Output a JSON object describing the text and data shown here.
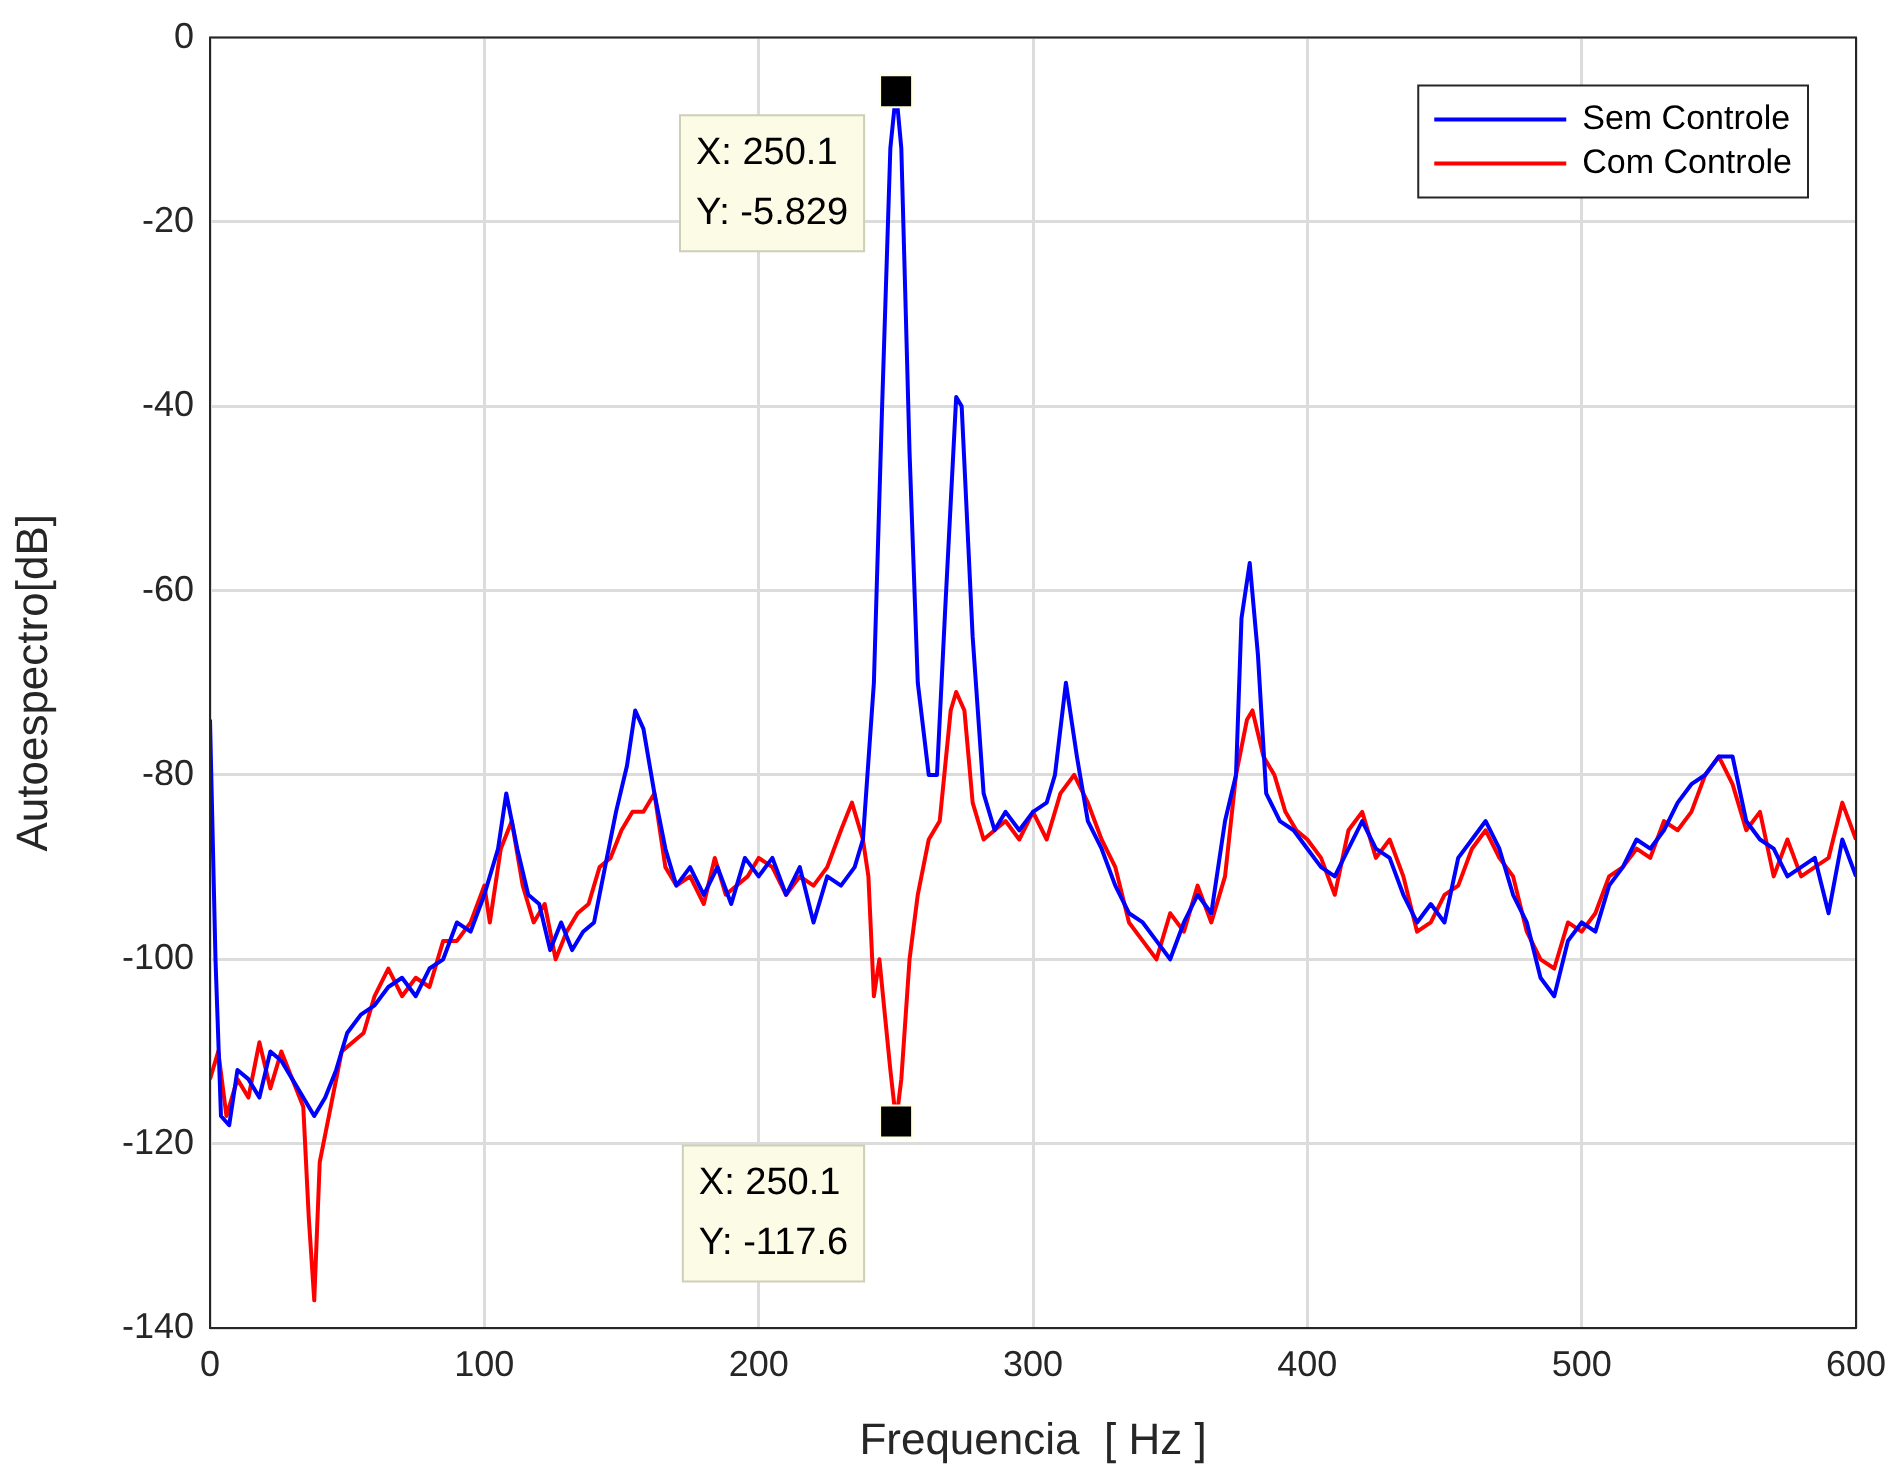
{
  "chart_data": {
    "type": "line",
    "xlabel": "Frequencia  [ Hz ]",
    "ylabel": "Autoespectro[dB]",
    "xlim": [
      0,
      600
    ],
    "xticks": [
      0,
      100,
      200,
      300,
      400,
      500,
      600
    ],
    "ylim": [
      -140,
      0
    ],
    "yticks": [
      -140,
      -120,
      -100,
      -80,
      -60,
      -40,
      -20,
      0
    ],
    "grid": true,
    "legend": "top right",
    "marker": "none",
    "line_style": "solid",
    "annotations": [
      {
        "text": "X: 250.1\nY: -5.829",
        "x": 250.1,
        "y": -5.829
      },
      {
        "text": "X: 250.1\nY: -117.6",
        "x": 250.1,
        "y": -117.6
      }
    ],
    "series": [
      {
        "name": "Sem Controle",
        "color": "#0000ff",
        "x": [
          0,
          2,
          4,
          7,
          10,
          14,
          18,
          22,
          26,
          30,
          34,
          38,
          42,
          46,
          50,
          55,
          60,
          65,
          70,
          75,
          80,
          85,
          90,
          95,
          100,
          105,
          108,
          112,
          116,
          120,
          124,
          128,
          132,
          136,
          140,
          144,
          148,
          152,
          155,
          158,
          162,
          166,
          170,
          175,
          180,
          185,
          190,
          195,
          200,
          205,
          210,
          215,
          220,
          225,
          230,
          235,
          238,
          242,
          245,
          248,
          250.1,
          252,
          255,
          258,
          262,
          265,
          268,
          272,
          274,
          278,
          282,
          286,
          290,
          295,
          300,
          305,
          308,
          312,
          316,
          320,
          325,
          330,
          335,
          340,
          345,
          350,
          355,
          360,
          365,
          370,
          374,
          376,
          379,
          382,
          385,
          390,
          395,
          400,
          405,
          410,
          415,
          420,
          425,
          430,
          435,
          440,
          445,
          450,
          455,
          460,
          465,
          470,
          475,
          480,
          485,
          490,
          495,
          500,
          505,
          510,
          515,
          520,
          525,
          530,
          535,
          540,
          545,
          550,
          555,
          560,
          565,
          570,
          575,
          580,
          585,
          590,
          595,
          600
        ],
        "values": [
          -74,
          -100,
          -117,
          -118,
          -112,
          -113,
          -115,
          -110,
          -111,
          -113,
          -115,
          -117,
          -115,
          -112,
          -108,
          -106,
          -105,
          -103,
          -102,
          -104,
          -101,
          -100,
          -96,
          -97,
          -93,
          -88,
          -82,
          -88,
          -93,
          -94,
          -99,
          -96,
          -99,
          -97,
          -96,
          -90,
          -84,
          -79,
          -73,
          -75,
          -82,
          -88,
          -92,
          -90,
          -93,
          -90,
          -94,
          -89,
          -91,
          -89,
          -93,
          -90,
          -96,
          -91,
          -92,
          -90,
          -87,
          -70,
          -40,
          -12,
          -5.829,
          -12,
          -45,
          -70,
          -80,
          -80,
          -62,
          -39,
          -40,
          -65,
          -82,
          -86,
          -84,
          -86,
          -84,
          -83,
          -80,
          -70,
          -78,
          -85,
          -88,
          -92,
          -95,
          -96,
          -98,
          -100,
          -96,
          -93,
          -95,
          -85,
          -80,
          -63,
          -57,
          -67,
          -82,
          -85,
          -86,
          -88,
          -90,
          -91,
          -88,
          -85,
          -88,
          -89,
          -93,
          -96,
          -94,
          -96,
          -89,
          -87,
          -85,
          -88,
          -93,
          -96,
          -102,
          -104,
          -98,
          -96,
          -97,
          -92,
          -90,
          -87,
          -88,
          -86,
          -83,
          -81,
          -80,
          -78,
          -78,
          -85,
          -87,
          -88,
          -91,
          -90,
          -89,
          -95,
          -87,
          -91
        ]
      },
      {
        "name": "Com Controle",
        "color": "#ff0000",
        "x": [
          0,
          3,
          6,
          10,
          14,
          18,
          22,
          26,
          30,
          34,
          36,
          38,
          40,
          44,
          48,
          52,
          56,
          60,
          65,
          70,
          75,
          80,
          85,
          90,
          95,
          100,
          102,
          106,
          110,
          114,
          118,
          122,
          126,
          130,
          134,
          138,
          142,
          146,
          150,
          154,
          158,
          162,
          166,
          170,
          175,
          180,
          184,
          188,
          192,
          196,
          200,
          205,
          210,
          215,
          220,
          225,
          230,
          234,
          238,
          240,
          242,
          244,
          246,
          248,
          250.1,
          252,
          255,
          258,
          262,
          266,
          270,
          272,
          275,
          278,
          282,
          286,
          290,
          295,
          300,
          305,
          310,
          315,
          320,
          325,
          330,
          335,
          340,
          345,
          350,
          355,
          360,
          365,
          370,
          374,
          378,
          380,
          384,
          388,
          392,
          396,
          400,
          405,
          410,
          415,
          420,
          425,
          430,
          435,
          440,
          445,
          450,
          455,
          460,
          465,
          470,
          475,
          480,
          485,
          490,
          495,
          500,
          505,
          510,
          515,
          520,
          525,
          530,
          535,
          540,
          545,
          550,
          555,
          560,
          565,
          570,
          575,
          580,
          585,
          590,
          595,
          600
        ],
        "values": [
          -113,
          -110,
          -117,
          -113,
          -115,
          -109,
          -114,
          -110,
          -113,
          -116,
          -128,
          -137,
          -122,
          -116,
          -110,
          -109,
          -108,
          -104,
          -101,
          -104,
          -102,
          -103,
          -98,
          -98,
          -96,
          -92,
          -96,
          -88,
          -85,
          -92,
          -96,
          -94,
          -100,
          -97,
          -95,
          -94,
          -90,
          -89,
          -86,
          -84,
          -84,
          -82,
          -90,
          -92,
          -91,
          -94,
          -89,
          -93,
          -92,
          -91,
          -89,
          -90,
          -93,
          -91,
          -92,
          -90,
          -86,
          -83,
          -87,
          -91,
          -104,
          -100,
          -106,
          -112,
          -117.6,
          -113,
          -100,
          -93,
          -87,
          -85,
          -73,
          -71,
          -73,
          -83,
          -87,
          -86,
          -85,
          -87,
          -84,
          -87,
          -82,
          -80,
          -83,
          -87,
          -90,
          -96,
          -98,
          -100,
          -95,
          -97,
          -92,
          -96,
          -91,
          -80,
          -74,
          -73,
          -78,
          -80,
          -84,
          -86,
          -87,
          -89,
          -93,
          -86,
          -84,
          -89,
          -87,
          -91,
          -97,
          -96,
          -93,
          -92,
          -88,
          -86,
          -89,
          -91,
          -97,
          -100,
          -101,
          -96,
          -97,
          -95,
          -91,
          -90,
          -88,
          -89,
          -85,
          -86,
          -84,
          -80,
          -78,
          -81,
          -86,
          -84,
          -91,
          -87,
          -91,
          -90,
          -89,
          -83,
          -87
        ]
      }
    ]
  }
}
